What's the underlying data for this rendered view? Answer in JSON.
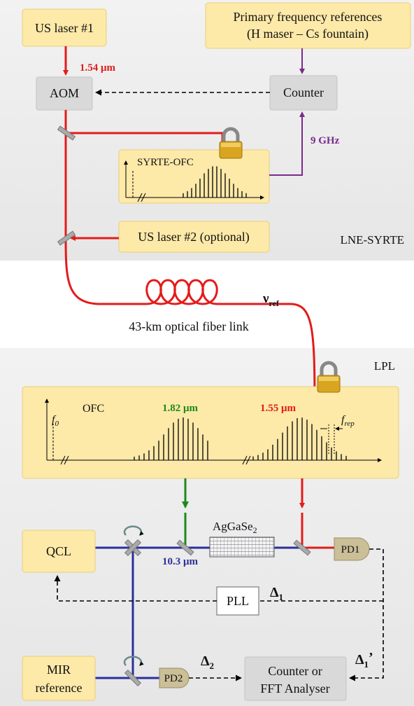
{
  "top_panel": {
    "label": "LNE-SYRTE",
    "us_laser_1": "US laser #1",
    "primary_references": [
      "Primary frequency references",
      "(H maser – Cs fountain)"
    ],
    "wavelength": "1.54 μm",
    "aom": "AOM",
    "counter": "Counter",
    "beat": "9 GHz",
    "syrte_ofc": "SYRTE-OFC",
    "us_laser_2": "US laser #2 (optional)"
  },
  "fiber_link": {
    "label": "43-km optical fiber link",
    "nu_ref": {
      "symbol": "ν",
      "subscript": "ref"
    }
  },
  "bottom_panel": {
    "label": "LPL",
    "ofc": "OFC",
    "f0": {
      "symbol": "f",
      "subscript": "0"
    },
    "frep": {
      "symbol": "f",
      "subscript": "rep"
    },
    "wavelength_green": "1.82 μm",
    "wavelength_red": "1.55 μm",
    "crystal": {
      "text": "AgGaSe",
      "subscript": "2"
    },
    "qcl": "QCL",
    "pd1": "PD1",
    "wavelength_mir": "10.3 μm",
    "pll": "PLL",
    "delta1": {
      "symbol": "Δ",
      "subscript": "1"
    },
    "mir_reference": [
      "MIR",
      "reference"
    ],
    "pd2": "PD2",
    "delta2": {
      "symbol": "Δ",
      "subscript": "2"
    },
    "counter_fft": [
      "Counter or",
      "FFT Analyser"
    ],
    "delta1_prime": {
      "symbol": "Δ",
      "subscript": "1",
      "suffix": "’"
    }
  }
}
